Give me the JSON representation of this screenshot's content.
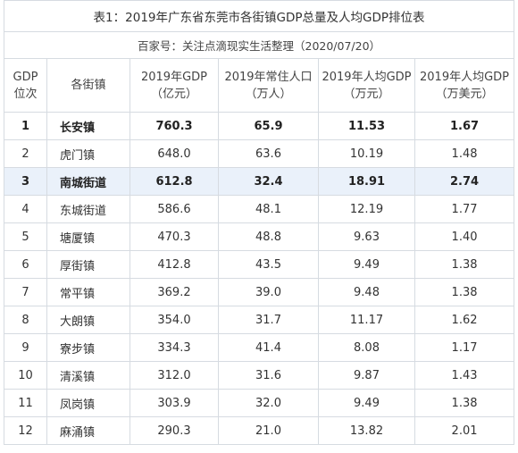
{
  "title": "表1：2019年广东省东莞市各街镇GDP总量及人均GDP排位表",
  "source": "百家号：关注点滴现实生活整理（2020/07/20）",
  "header": {
    "rank": [
      "GDP",
      "位次"
    ],
    "town": "各街镇",
    "gdp": [
      "2019年GDP",
      "（亿元）"
    ],
    "pop": [
      "2019年常住人口",
      "（万人）"
    ],
    "gdp_pc_cny": [
      "2019年人均GDP",
      "（万元）"
    ],
    "gdp_pc_usd": [
      "2019年人均GDP",
      "（万美元）"
    ]
  },
  "rows": [
    {
      "rank": "1",
      "town": "长安镇",
      "gdp": "760.3",
      "pop": "65.9",
      "pc_cny": "11.53",
      "pc_usd": "1.67",
      "bold": true,
      "highlight": false
    },
    {
      "rank": "2",
      "town": "虎门镇",
      "gdp": "648.0",
      "pop": "63.6",
      "pc_cny": "10.19",
      "pc_usd": "1.48",
      "bold": false,
      "highlight": false
    },
    {
      "rank": "3",
      "town": "南城街道",
      "gdp": "612.8",
      "pop": "32.4",
      "pc_cny": "18.91",
      "pc_usd": "2.74",
      "bold": true,
      "highlight": true
    },
    {
      "rank": "4",
      "town": "东城街道",
      "gdp": "586.6",
      "pop": "48.1",
      "pc_cny": "12.19",
      "pc_usd": "1.77",
      "bold": false,
      "highlight": false
    },
    {
      "rank": "5",
      "town": "塘厦镇",
      "gdp": "470.3",
      "pop": "48.8",
      "pc_cny": "9.63",
      "pc_usd": "1.40",
      "bold": false,
      "highlight": false
    },
    {
      "rank": "6",
      "town": "厚街镇",
      "gdp": "412.8",
      "pop": "43.5",
      "pc_cny": "9.49",
      "pc_usd": "1.38",
      "bold": false,
      "highlight": false
    },
    {
      "rank": "7",
      "town": "常平镇",
      "gdp": "369.2",
      "pop": "39.0",
      "pc_cny": "9.48",
      "pc_usd": "1.38",
      "bold": false,
      "highlight": false
    },
    {
      "rank": "8",
      "town": "大朗镇",
      "gdp": "354.0",
      "pop": "31.7",
      "pc_cny": "11.17",
      "pc_usd": "1.62",
      "bold": false,
      "highlight": false
    },
    {
      "rank": "9",
      "town": "寮步镇",
      "gdp": "334.3",
      "pop": "41.4",
      "pc_cny": "8.08",
      "pc_usd": "1.17",
      "bold": false,
      "highlight": false
    },
    {
      "rank": "10",
      "town": "清溪镇",
      "gdp": "312.0",
      "pop": "31.6",
      "pc_cny": "9.87",
      "pc_usd": "1.43",
      "bold": false,
      "highlight": false
    },
    {
      "rank": "11",
      "town": "凤岗镇",
      "gdp": "303.9",
      "pop": "32.0",
      "pc_cny": "9.49",
      "pc_usd": "1.38",
      "bold": false,
      "highlight": false
    },
    {
      "rank": "12",
      "town": "麻涌镇",
      "gdp": "290.3",
      "pop": "21.0",
      "pc_cny": "13.82",
      "pc_usd": "2.01",
      "bold": false,
      "highlight": false
    }
  ]
}
